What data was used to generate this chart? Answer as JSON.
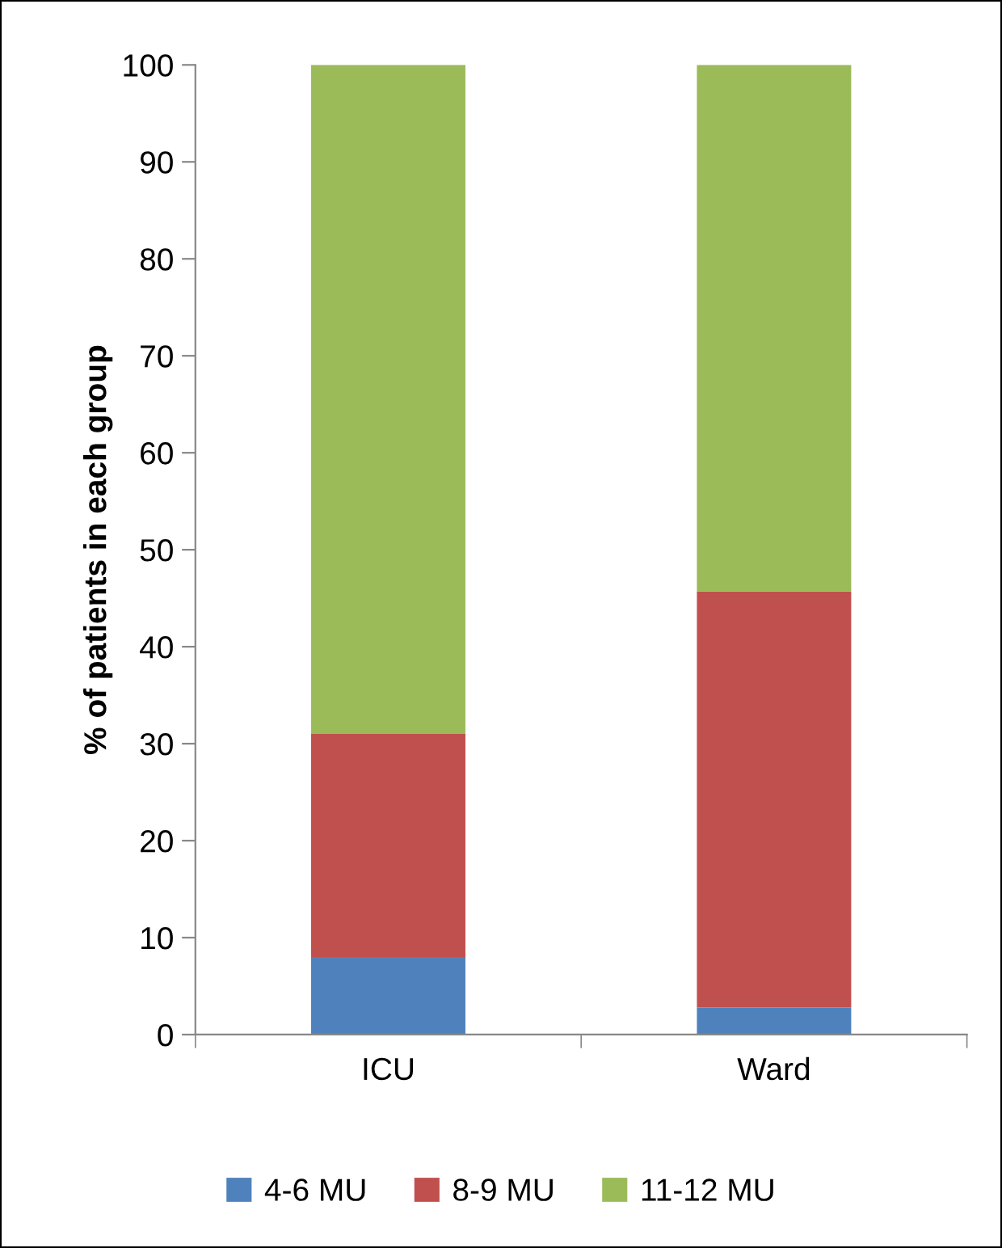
{
  "chart_data": {
    "type": "bar",
    "stacked": true,
    "ylabel": "% of patients in each group",
    "categories": [
      "ICU",
      "Ward"
    ],
    "series": [
      {
        "name": "4-6 MU",
        "color": "#4f81bd",
        "values": [
          8,
          2.8
        ]
      },
      {
        "name": "8-9 MU",
        "color": "#c0504d",
        "values": [
          23,
          42.9
        ]
      },
      {
        "name": "11-12 MU",
        "color": "#9bbb59",
        "values": [
          69,
          54.3
        ]
      }
    ],
    "ylim": [
      0,
      100
    ],
    "yticks": [
      0,
      10,
      20,
      30,
      40,
      50,
      60,
      70,
      80,
      90,
      100
    ],
    "grid": false,
    "legend": "bottom"
  }
}
